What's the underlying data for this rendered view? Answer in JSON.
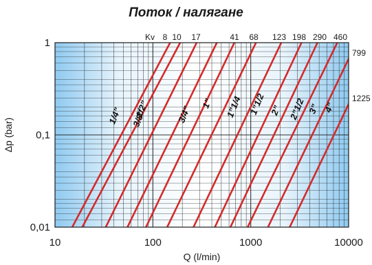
{
  "chart_data": {
    "type": "line",
    "title": "Поток / налягане",
    "xlabel": "Q (l/min)",
    "ylabel": "Δp (bar)",
    "x_scale": "log",
    "y_scale": "log",
    "xlim": [
      10,
      10000
    ],
    "ylim": [
      0.01,
      1
    ],
    "grid": true,
    "x_tick_labels": [
      "10",
      "100",
      "1000",
      "10000"
    ],
    "y_tick_labels": [
      "0,01",
      "0,1",
      "1"
    ],
    "kv_label": "Kv",
    "colors": {
      "line": "#d42a2a",
      "bg_light": "#ffffff",
      "bg_blue": "#8fcaf0",
      "grid": "#1c1c1c"
    },
    "series": [
      {
        "name": "1/4\"",
        "kv": "8",
        "size_label": "1/4”"
      },
      {
        "name": "3/8\"",
        "kv": "10",
        "size_label": "3/8”"
      },
      {
        "name": "1/2\"",
        "kv": "17",
        "size_label": "1/2”"
      },
      {
        "name": "3/4\"",
        "kv": "",
        "size_label": "3/4”"
      },
      {
        "name": "1\"",
        "kv": "41",
        "size_label": "1”"
      },
      {
        "name": "1\"1/4",
        "kv": "68",
        "size_label": "1”1/4"
      },
      {
        "name": "1\"1/2",
        "kv": "123",
        "size_label": "1”1/2"
      },
      {
        "name": "2\"",
        "kv": "198",
        "size_label": "2”"
      },
      {
        "name": "2\"1/2",
        "kv": "290",
        "size_label": "2”1/2"
      },
      {
        "name": "3\"",
        "kv": "460",
        "size_label": "3”"
      },
      {
        "name": "4\"",
        "kv": "799",
        "size_label": "4”"
      },
      {
        "name": "",
        "kv": "1225",
        "size_label": ""
      }
    ],
    "lines_q_at_dp": [
      {
        "dp001_q": 15,
        "dp1_q": 150
      },
      {
        "dp001_q": 19,
        "dp1_q": 190
      },
      {
        "dp001_q": 33,
        "dp1_q": 280
      },
      {
        "dp001_q": 55,
        "dp1_q": 450
      },
      {
        "dp001_q": 85,
        "dp1_q": 680
      },
      {
        "dp001_q": 140,
        "dp1_q": 1130
      },
      {
        "dp001_q": 260,
        "dp1_q": 2050
      },
      {
        "dp001_q": 430,
        "dp1_q": 3300
      },
      {
        "dp001_q": 620,
        "dp1_q": 4800
      },
      {
        "dp001_q": 930,
        "dp1_q": 7650
      },
      {
        "dp001_q": 1500,
        "dp1_q": 12000
      },
      {
        "dp001_q": 2500,
        "dp1_q": 20000
      }
    ]
  }
}
